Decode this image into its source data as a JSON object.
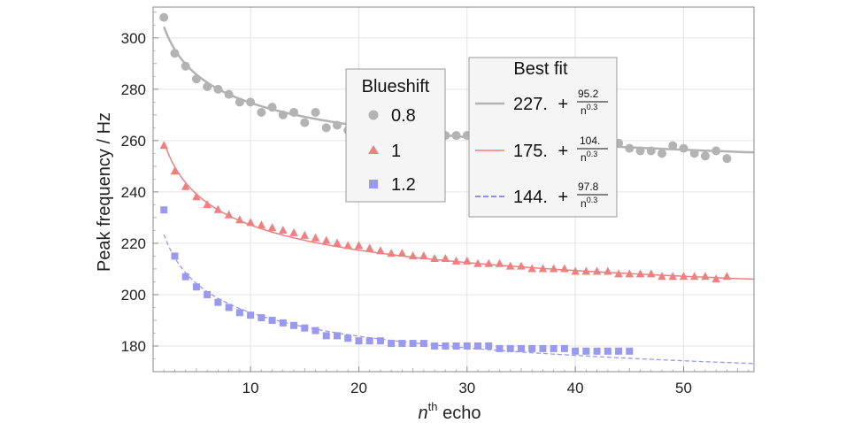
{
  "chart_data": {
    "type": "scatter",
    "xlabel": {
      "base": "n",
      "sup": "th",
      "rest": " echo"
    },
    "ylabel": "Peak frequency / Hz",
    "xlim": [
      1,
      56.5
    ],
    "ylim": [
      170,
      312
    ],
    "xticks": [
      10,
      20,
      30,
      40,
      50
    ],
    "yticks": [
      180,
      200,
      220,
      240,
      260,
      280,
      300
    ],
    "grid": true,
    "legend_markers": {
      "title": "Blueshift",
      "placement": "top-center",
      "entries": [
        "0.8",
        "1",
        "1.2"
      ]
    },
    "legend_fits": {
      "title": "Best fit",
      "placement": "top-right",
      "entries": [
        {
          "constant": "227.",
          "plus": " + ",
          "numerator": "95.2",
          "denominator_base": "n",
          "denominator_exp": "0.3"
        },
        {
          "constant": "175.",
          "plus": " + ",
          "numerator": "104.",
          "denominator_base": "n",
          "denominator_exp": "0.3"
        },
        {
          "constant": "144.",
          "plus": " + ",
          "numerator": "97.8",
          "denominator_base": "n",
          "denominator_exp": "0.3"
        }
      ]
    },
    "series": [
      {
        "name": "0.8",
        "marker": "circle",
        "color": "#b3b3b3",
        "x": [
          2,
          3,
          4,
          5,
          6,
          7,
          8,
          9,
          10,
          11,
          12,
          13,
          14,
          15,
          16,
          17,
          18,
          19,
          20,
          21,
          22,
          23,
          24,
          25,
          26,
          27,
          28,
          29,
          30,
          31,
          32,
          33,
          34,
          35,
          36,
          37,
          38,
          39,
          40,
          41,
          42,
          43,
          44,
          45,
          46,
          47,
          48,
          49,
          50,
          51,
          52,
          53,
          54
        ],
        "y": [
          308,
          294,
          289,
          284,
          281,
          280,
          278,
          275,
          275,
          271,
          273,
          270,
          271,
          267,
          271,
          265,
          266,
          264,
          265,
          265,
          264,
          263,
          262,
          261,
          263,
          262,
          262,
          262,
          262,
          262,
          261,
          261,
          260,
          259,
          261,
          259,
          260,
          258,
          258,
          257,
          257,
          259,
          259,
          257,
          256,
          256,
          255,
          258,
          257,
          255,
          254,
          256,
          253
        ]
      },
      {
        "name": "1",
        "marker": "triangle",
        "color": "#f08080",
        "x": [
          2,
          3,
          4,
          5,
          6,
          7,
          8,
          9,
          10,
          11,
          12,
          13,
          14,
          15,
          16,
          17,
          18,
          19,
          20,
          21,
          22,
          23,
          24,
          25,
          26,
          27,
          28,
          29,
          30,
          31,
          32,
          33,
          34,
          35,
          36,
          37,
          38,
          39,
          40,
          41,
          42,
          43,
          44,
          45,
          46,
          47,
          48,
          49,
          50,
          51,
          52,
          53,
          54
        ],
        "y": [
          258,
          248,
          242,
          238,
          235,
          233,
          231,
          229,
          228,
          227,
          226,
          225,
          224,
          223,
          222,
          221,
          220,
          219,
          219,
          218,
          217,
          216,
          216,
          215,
          215,
          214,
          214,
          213,
          213,
          212,
          212,
          212,
          211,
          211,
          210,
          210,
          210,
          210,
          209,
          209,
          209,
          209,
          208,
          208,
          208,
          208,
          207,
          207,
          207,
          207,
          207,
          206,
          207
        ]
      },
      {
        "name": "1.2",
        "marker": "square",
        "color": "#9999f0",
        "x": [
          2,
          3,
          4,
          5,
          6,
          7,
          8,
          9,
          10,
          11,
          12,
          13,
          14,
          15,
          16,
          17,
          18,
          19,
          20,
          21,
          22,
          23,
          24,
          25,
          26,
          27,
          28,
          29,
          30,
          31,
          32,
          33,
          34,
          35,
          36,
          37,
          38,
          39,
          40,
          41,
          42,
          43,
          44,
          45
        ],
        "y": [
          233,
          215,
          207,
          203,
          200,
          197,
          195,
          193,
          192,
          191,
          190,
          189,
          188,
          187,
          186,
          184,
          184,
          183,
          182,
          182,
          182,
          181,
          181,
          181,
          181,
          180,
          180,
          180,
          180,
          180,
          180,
          179,
          179,
          179,
          179,
          179,
          179,
          179,
          178,
          178,
          178,
          178,
          178,
          178
        ]
      }
    ],
    "fits": [
      {
        "name": "fit-0.8",
        "constant": 227,
        "coef": 95.2,
        "exponent": 0.3,
        "color": "#b3b3b3",
        "style": "solid",
        "xrange": [
          2,
          56.5
        ]
      },
      {
        "name": "fit-1",
        "constant": 175,
        "coef": 104,
        "exponent": 0.3,
        "color": "#f08080",
        "style": "solid",
        "xrange": [
          2,
          56.5
        ]
      },
      {
        "name": "fit-1.2",
        "constant": 144,
        "coef": 97.8,
        "exponent": 0.3,
        "color": "#9999f0",
        "style": "dashed",
        "xrange": [
          2,
          56.5
        ]
      }
    ]
  }
}
